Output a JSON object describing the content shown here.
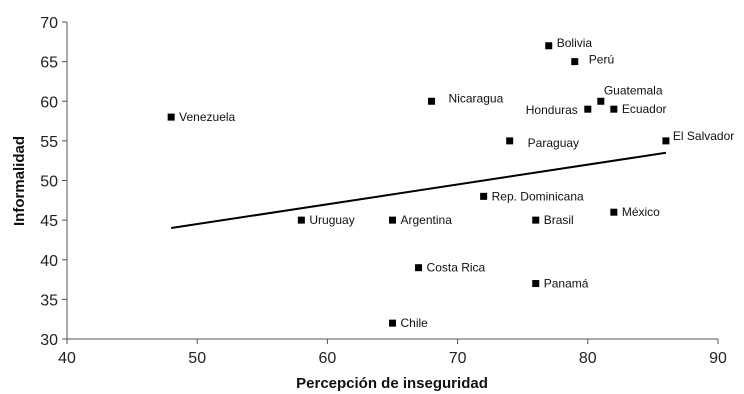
{
  "chart_data": {
    "type": "scatter",
    "xlabel": "Percepción de inseguridad",
    "ylabel": "Informalidad",
    "xlim": [
      40,
      90
    ],
    "ylim": [
      30,
      70
    ],
    "x_ticks": [
      40,
      50,
      60,
      70,
      80,
      90
    ],
    "y_ticks": [
      30,
      35,
      40,
      45,
      50,
      55,
      60,
      65,
      70
    ],
    "grid": false,
    "points": [
      {
        "label": "Bolivia",
        "x": 77,
        "y": 67
      },
      {
        "label": "Perú",
        "x": 79,
        "y": 65
      },
      {
        "label": "Guatemala",
        "x": 81,
        "y": 60
      },
      {
        "label": "Honduras",
        "x": 80,
        "y": 59
      },
      {
        "label": "Ecuador",
        "x": 82,
        "y": 59
      },
      {
        "label": "Nicaragua",
        "x": 68,
        "y": 60
      },
      {
        "label": "Venezuela",
        "x": 48,
        "y": 58
      },
      {
        "label": "El Salvador",
        "x": 86,
        "y": 55
      },
      {
        "label": "Paraguay",
        "x": 74,
        "y": 55
      },
      {
        "label": "Rep. Dominicana",
        "x": 72,
        "y": 48
      },
      {
        "label": "México",
        "x": 82,
        "y": 46
      },
      {
        "label": "Uruguay",
        "x": 58,
        "y": 45
      },
      {
        "label": "Argentina",
        "x": 65,
        "y": 45
      },
      {
        "label": "Brasil",
        "x": 76,
        "y": 45
      },
      {
        "label": "Costa Rica",
        "x": 67,
        "y": 39
      },
      {
        "label": "Panamá",
        "x": 76,
        "y": 37
      },
      {
        "label": "Chile",
        "x": 65,
        "y": 32
      }
    ],
    "trendline": {
      "x": [
        48,
        86
      ],
      "y": [
        44,
        53.5
      ]
    }
  }
}
